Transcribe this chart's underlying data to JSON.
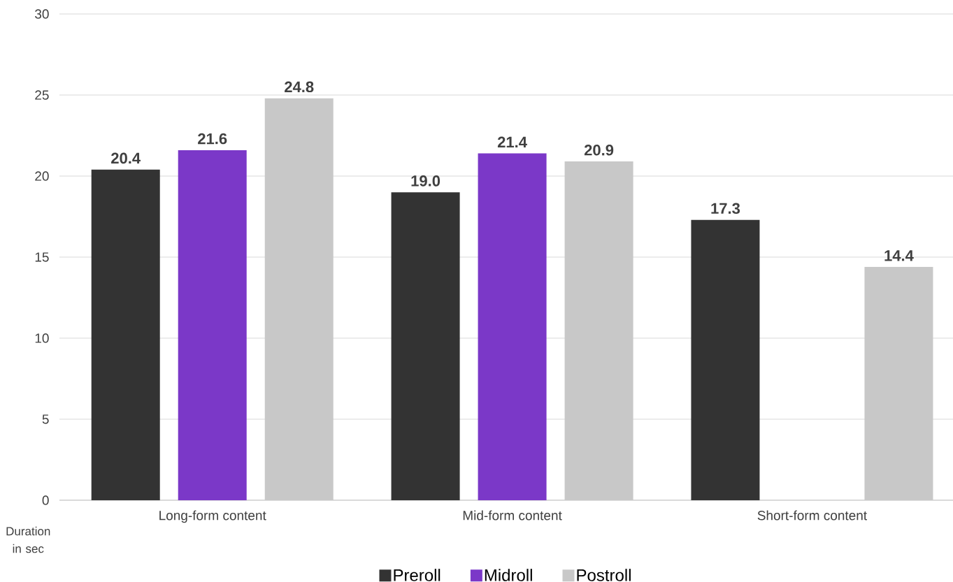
{
  "chart_data": {
    "type": "bar",
    "ylabel": "Duration in sec",
    "categories": [
      "Long-form content",
      "Mid-form content",
      "Short-form content"
    ],
    "series": [
      {
        "name": "Preroll",
        "color": "#333333",
        "values": [
          20.4,
          19.0,
          17.3
        ],
        "value_labels": [
          "20.4",
          "19.0",
          "17.3"
        ]
      },
      {
        "name": "Midroll",
        "color": "#7b38c8",
        "values": [
          21.6,
          21.4,
          null
        ],
        "value_labels": [
          "21.6",
          "21.4",
          null
        ]
      },
      {
        "name": "Postroll",
        "color": "#c8c8c8",
        "values": [
          24.8,
          20.9,
          14.4
        ],
        "value_labels": [
          "24.8",
          "20.9",
          "14.4"
        ]
      }
    ],
    "ylim": [
      0,
      30
    ],
    "yticks": [
      0,
      5,
      10,
      15,
      20,
      25,
      30
    ],
    "grid": "y",
    "legend": "bottom"
  }
}
